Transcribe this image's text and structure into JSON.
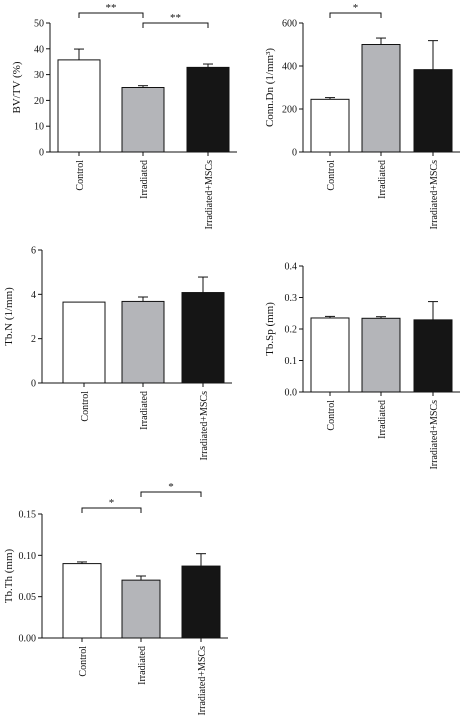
{
  "chart_data": [
    {
      "type": "bar",
      "categories": [
        "Control",
        "Irradiated",
        "Irradiated+MSCs"
      ],
      "values": [
        35.7,
        25.0,
        32.8
      ],
      "errors": [
        4.2,
        0.7,
        1.3
      ],
      "colors": [
        "#ffffff",
        "#b4b5b9",
        "#151515"
      ],
      "ylabel": "BV/TV (%)",
      "ylim": [
        0,
        50
      ],
      "yticks": [
        "0",
        "10",
        "20",
        "30",
        "40",
        "50"
      ],
      "significance": [
        {
          "from": 0,
          "to": 1,
          "label": "**"
        },
        {
          "from": 1,
          "to": 2,
          "label": "**"
        }
      ]
    },
    {
      "type": "bar",
      "categories": [
        "Control",
        "Irradiated",
        "Irradiated+MSCs"
      ],
      "values": [
        245,
        500,
        383
      ],
      "errors": [
        8,
        30,
        135
      ],
      "colors": [
        "#ffffff",
        "#b4b5b9",
        "#151515"
      ],
      "ylabel": "Conn.Dn (1/mm³)",
      "ylim": [
        0,
        600
      ],
      "yticks": [
        "0",
        "200",
        "400",
        "600"
      ],
      "significance": [
        {
          "from": 0,
          "to": 1,
          "label": "*"
        }
      ]
    },
    {
      "type": "bar",
      "categories": [
        "Control",
        "Irradiated",
        "Irradiated+MSCs"
      ],
      "values": [
        3.65,
        3.68,
        4.08
      ],
      "errors": [
        0.0,
        0.2,
        0.7
      ],
      "colors": [
        "#ffffff",
        "#b4b5b9",
        "#151515"
      ],
      "ylabel": "Tb.N (1/mm)",
      "ylim": [
        0,
        6
      ],
      "yticks": [
        "0",
        "2",
        "4",
        "6"
      ],
      "significance": []
    },
    {
      "type": "bar",
      "categories": [
        "Control",
        "Irradiated",
        "Irradiated+MSCs"
      ],
      "values": [
        0.235,
        0.234,
        0.229
      ],
      "errors": [
        0.005,
        0.005,
        0.058
      ],
      "colors": [
        "#ffffff",
        "#b4b5b9",
        "#151515"
      ],
      "ylabel": "Tb.Sp (mm)",
      "ylim": [
        0,
        0.4
      ],
      "yticks": [
        "0.0",
        "0.1",
        "0.2",
        "0.3",
        "0.4"
      ],
      "significance": []
    },
    {
      "type": "bar",
      "categories": [
        "Control",
        "Irradiated",
        "Irradiated+MSCs"
      ],
      "values": [
        0.09,
        0.07,
        0.087
      ],
      "errors": [
        0.002,
        0.005,
        0.015
      ],
      "colors": [
        "#ffffff",
        "#b4b5b9",
        "#151515"
      ],
      "ylabel": "Tb.Th (mm)",
      "ylim": [
        0,
        0.15
      ],
      "yticks": [
        "0.00",
        "0.05",
        "0.10",
        "0.15"
      ],
      "significance": [
        {
          "from": 0,
          "to": 1,
          "label": "*"
        },
        {
          "from": 1,
          "to": 2,
          "label": "*"
        }
      ]
    }
  ]
}
